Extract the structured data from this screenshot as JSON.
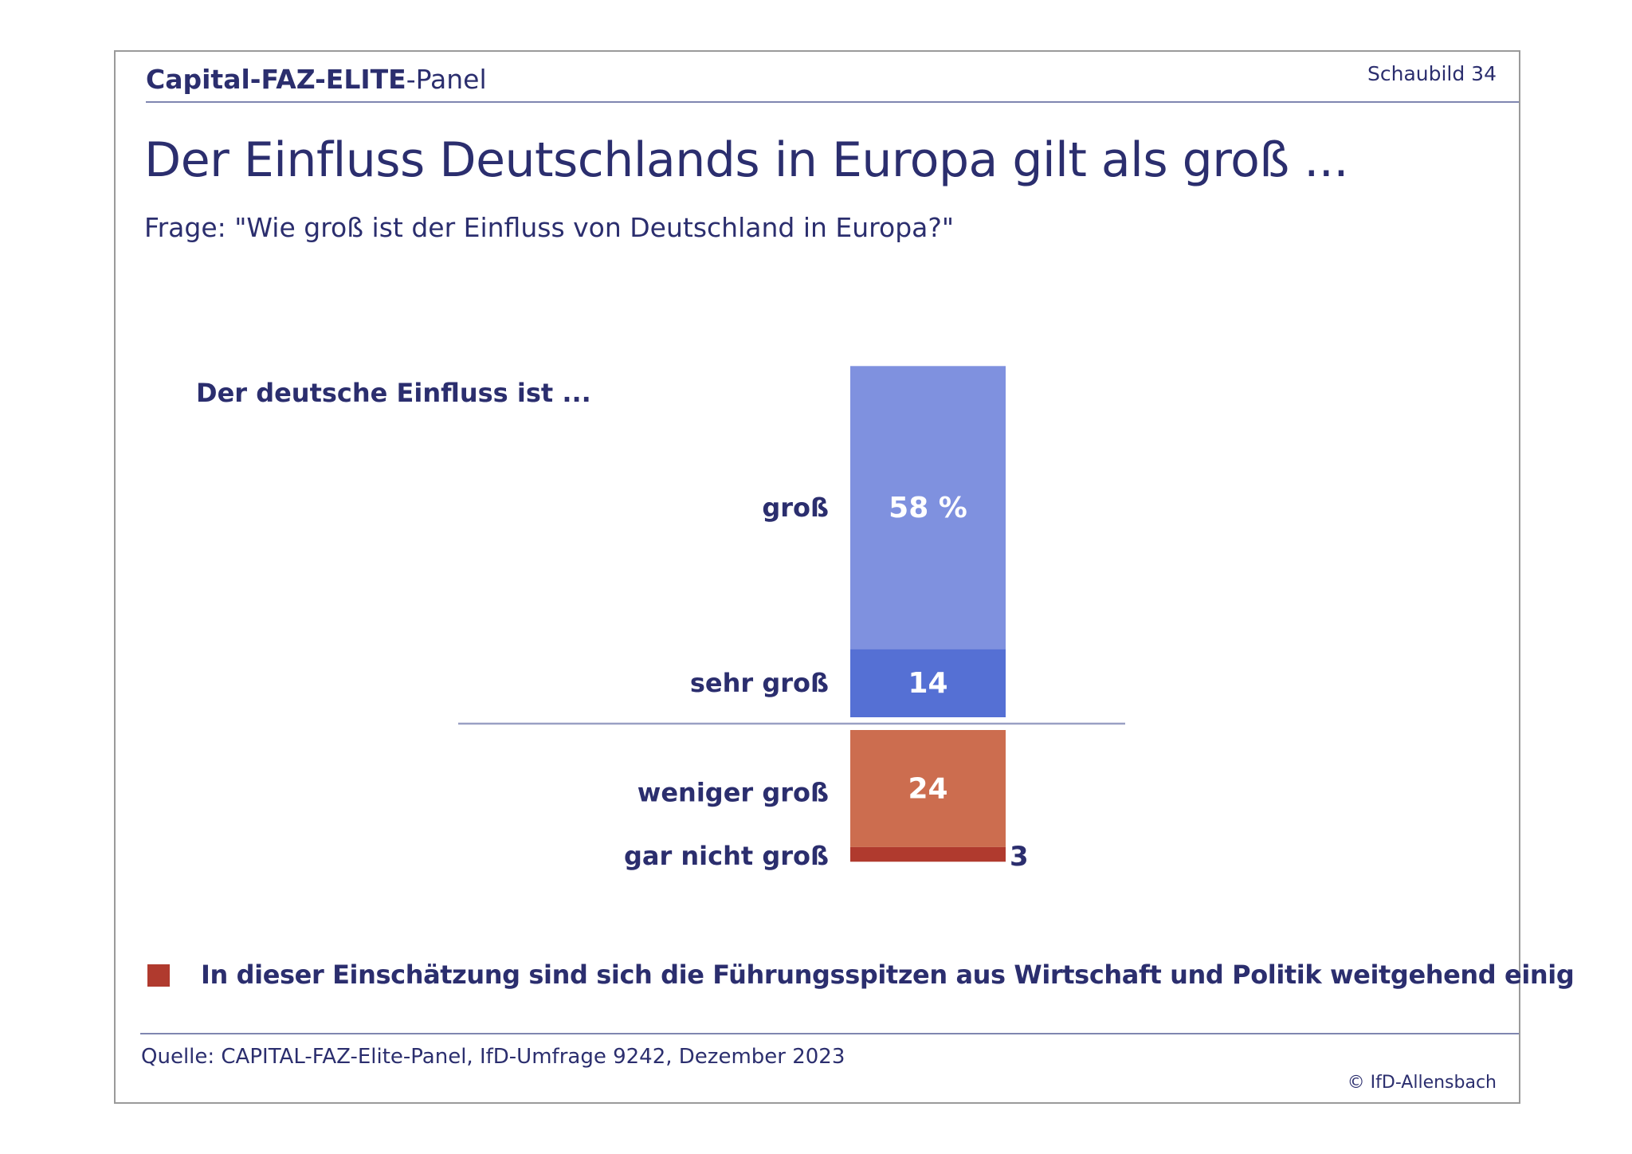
{
  "header": {
    "brand_bold": "Capital-FAZ-ELITE",
    "brand_rest": "-Panel",
    "figure_no": "Schaubild 34"
  },
  "title": "Der Einfluss Deutschlands in Europa gilt als groß ...",
  "question": "Frage: \"Wie groß ist der Einfluss von Deutschland in Europa?\"",
  "chart_data": {
    "type": "bar",
    "orientation": "vertical-stacked-diverging",
    "group_label": "Der deutsche Einfluss ist ...",
    "unit": "%",
    "segments_above": [
      {
        "category": "sehr groß",
        "value": 14,
        "label": "14",
        "color": "#5570d4"
      },
      {
        "category": "groß",
        "value": 58,
        "label": "58 %",
        "color": "#7f91df"
      }
    ],
    "segments_below": [
      {
        "category": "weniger groß",
        "value": 24,
        "label": "24",
        "color": "#cc6d4f"
      },
      {
        "category": "gar nicht groß",
        "value": 3,
        "label": "3",
        "color": "#b03a2e"
      }
    ],
    "baseline_color": "#9aa0c4"
  },
  "note": {
    "marker_color": "#b03a2e",
    "text": "In dieser Einschätzung sind sich die Führungsspitzen aus Wirtschaft und Politik weitgehend einig"
  },
  "footer": {
    "source": "Quelle: CAPITAL-FAZ-Elite-Panel, IfD-Umfrage 9242, Dezember 2023",
    "copyright": "© IfD-Allensbach"
  }
}
